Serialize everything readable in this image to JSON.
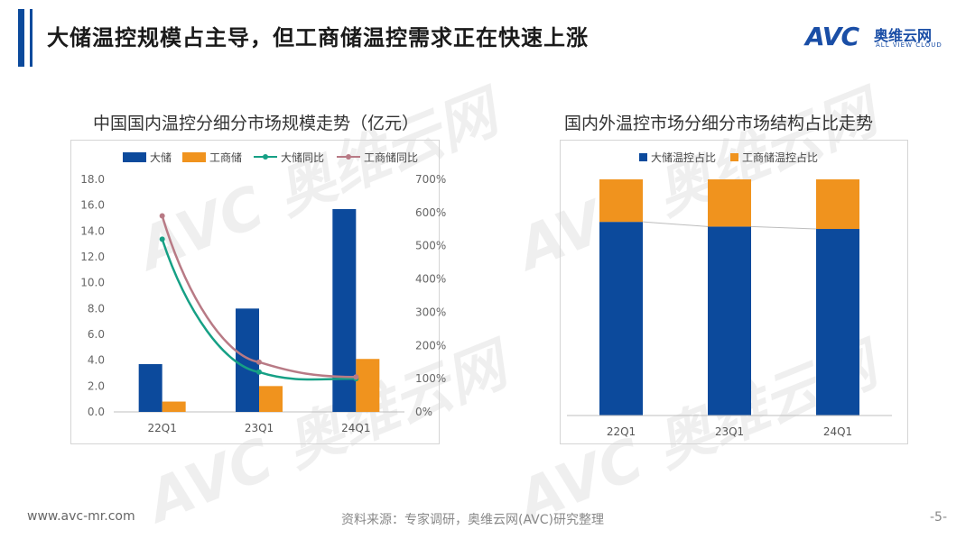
{
  "header": {
    "title": "大储温控规模占主导，但工商储温控需求正在快速上涨",
    "brand_avc": "AVC",
    "brand_cn": "奥维云网",
    "brand_en": "ALL VIEW CLOUD"
  },
  "chart_data": [
    {
      "type": "bar",
      "title": "中国国内温控分细分市场规模走势（亿元）",
      "categories": [
        "22Q1",
        "23Q1",
        "24Q1"
      ],
      "series": [
        {
          "name": "大储",
          "kind": "bar",
          "axis": "left",
          "color": "#0c4a9c",
          "values": [
            3.7,
            8.0,
            15.7
          ]
        },
        {
          "name": "工商储",
          "kind": "bar",
          "axis": "left",
          "color": "#f0931e",
          "values": [
            0.8,
            2.0,
            4.1
          ]
        },
        {
          "name": "大储同比",
          "kind": "line",
          "axis": "right",
          "color": "#16a085",
          "values": [
            520,
            120,
            100
          ]
        },
        {
          "name": "工商储同比",
          "kind": "line",
          "axis": "right",
          "color": "#b87a85",
          "values": [
            590,
            150,
            105
          ]
        }
      ],
      "ylim": [
        0,
        18
      ],
      "yticks": [
        "0.0",
        "2.0",
        "4.0",
        "6.0",
        "8.0",
        "10.0",
        "12.0",
        "14.0",
        "16.0",
        "18.0"
      ],
      "y2lim": [
        0,
        700
      ],
      "y2ticks": [
        "0%",
        "100%",
        "200%",
        "300%",
        "400%",
        "500%",
        "600%",
        "700%"
      ],
      "legend": "top",
      "grid": false
    },
    {
      "type": "bar",
      "stacked": true,
      "title": "国内外温控市场分细分市场结构占比走势",
      "categories": [
        "22Q1",
        "23Q1",
        "24Q1"
      ],
      "series": [
        {
          "name": "大储温控占比",
          "color": "#0c4a9c",
          "values": [
            82,
            80,
            79
          ]
        },
        {
          "name": "工商储温控占比",
          "color": "#f0931e",
          "values": [
            18,
            20,
            21
          ]
        }
      ],
      "ylim": [
        0,
        100
      ],
      "legend": "top",
      "grid": false
    }
  ],
  "footer": {
    "website": "www.avc-mr.com",
    "source": "资料来源：专家调研，奥维云网(AVC)研究整理",
    "page": "-5-"
  }
}
